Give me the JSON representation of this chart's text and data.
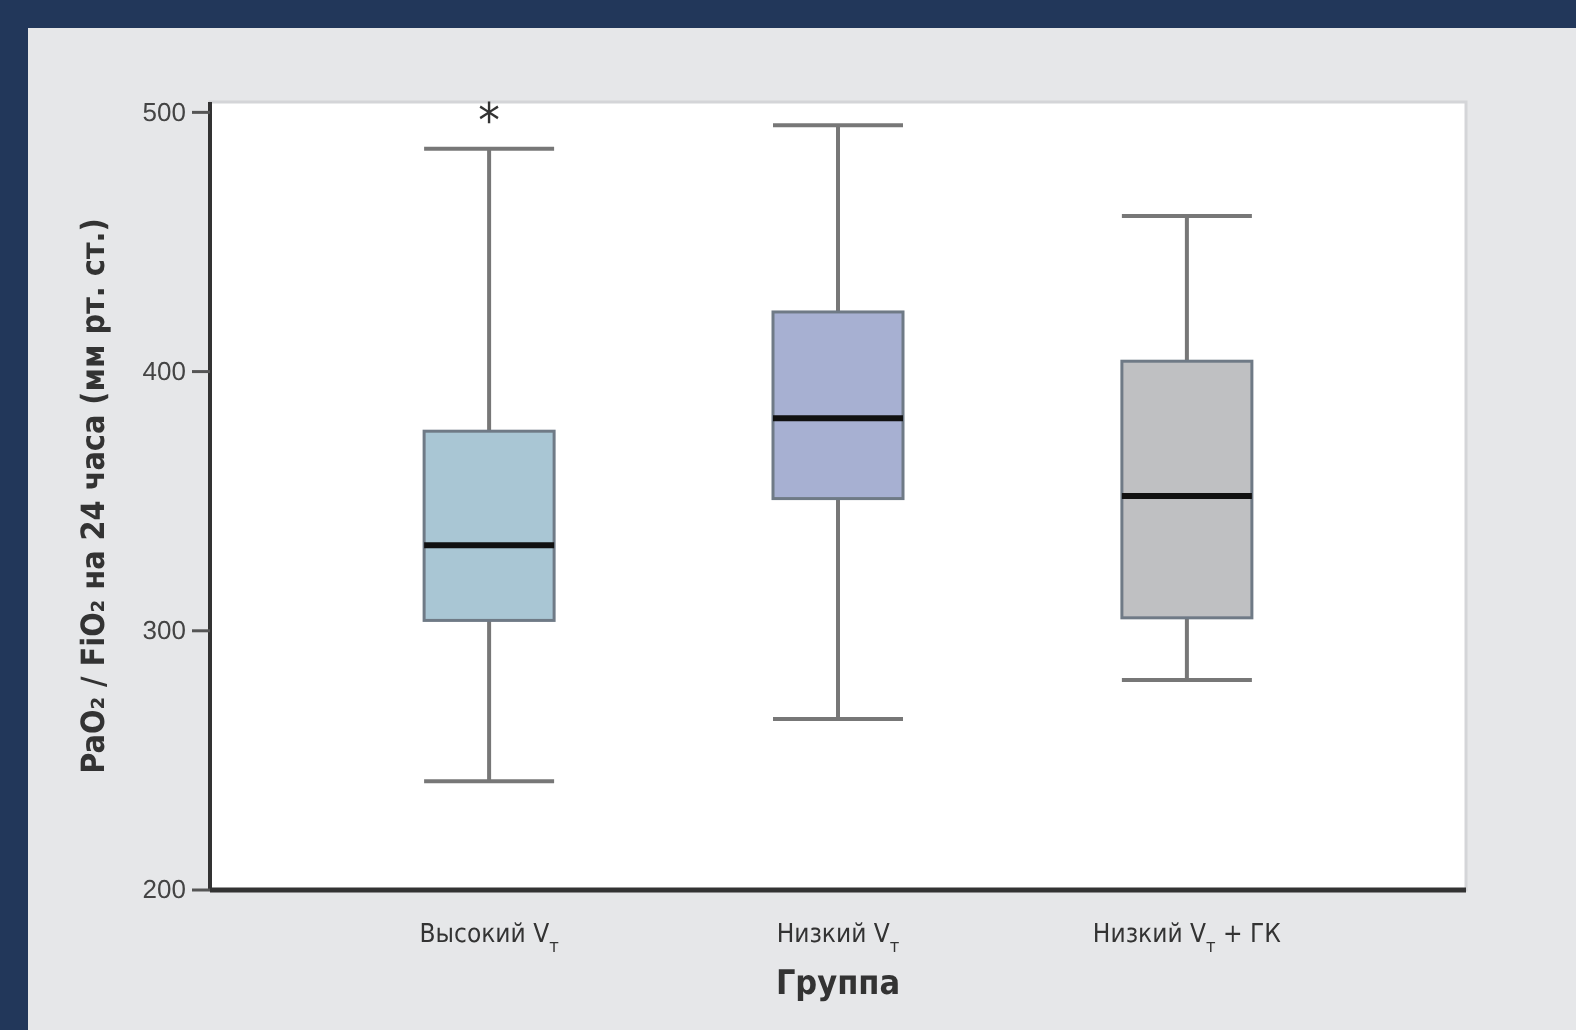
{
  "chart_data": {
    "type": "box",
    "categories": [
      "Высокий V$_{т}$",
      "Низкий V$_{т}$",
      "Низкий V$_{т}$ + ГК"
    ],
    "boxes": [
      {
        "low": 242,
        "q1": 304,
        "median": 333,
        "q3": 377,
        "high": 486
      },
      {
        "low": 266,
        "q1": 351,
        "median": 382,
        "q3": 423,
        "high": 495
      },
      {
        "low": 281,
        "q1": 305,
        "median": 352,
        "q3": 404,
        "high": 460
      }
    ],
    "colors": [
      "#a9c6d4",
      "#a7b0d2",
      "#bfc0c2"
    ],
    "xlabel": "Группа",
    "ylabel": "PaO₂ / FiO₂ на 24 часа (мм рт. ст.)",
    "ylim": [
      200,
      504
    ],
    "yticks": [
      200,
      300,
      400,
      500
    ],
    "annotations": [
      "*"
    ],
    "grid": false
  }
}
